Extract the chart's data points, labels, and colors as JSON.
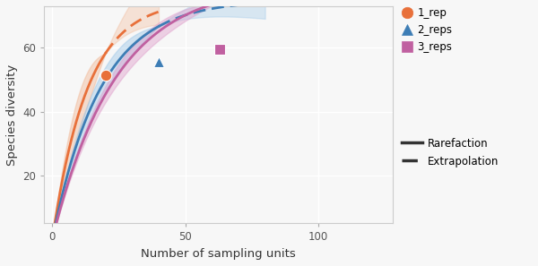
{
  "xlabel": "Number of sampling units",
  "ylabel": "Species diversity",
  "xlim": [
    -3,
    128
  ],
  "ylim": [
    5,
    73
  ],
  "yticks": [
    20,
    40,
    60
  ],
  "xticks": [
    0,
    50,
    100
  ],
  "bg_color": "#f7f7f7",
  "grid_color": "#ffffff",
  "series": [
    {
      "name": "1_rep",
      "color": "#E8703A",
      "shade_color": "#F2B896",
      "rare_end_x": 20,
      "extrap_end_x": 40,
      "sample_x": 20,
      "sample_y": 51.5,
      "marker": "o",
      "curve_a": 75,
      "curve_b": 0.075,
      "rare_ci_scale": 6.0,
      "extrap_ci_top_end": 15,
      "extrap_ci_bot_end": 4
    },
    {
      "name": "2_reps",
      "color": "#3D7DB5",
      "shade_color": "#9EC8E8",
      "rare_end_x": 40,
      "extrap_end_x": 80,
      "sample_x": 40,
      "sample_y": 55.5,
      "marker": "^",
      "curve_a": 75,
      "curve_b": 0.055,
      "rare_ci_scale": 4.0,
      "extrap_ci_top_end": 8,
      "extrap_ci_bot_end": 5
    },
    {
      "name": "3_reps",
      "color": "#C060A0",
      "shade_color": "#E0A0CC",
      "rare_end_x": 63,
      "extrap_end_x": 125,
      "sample_x": 63,
      "sample_y": 59.5,
      "marker": "s",
      "curve_a": 80,
      "curve_b": 0.042,
      "rare_ci_scale": 3.0,
      "extrap_ci_top_end": 10,
      "extrap_ci_bot_end": 3
    }
  ],
  "legend_labels": [
    "1_rep",
    "2_reps",
    "3_reps"
  ],
  "legend_colors": [
    "#E8703A",
    "#3D7DB5",
    "#C060A0"
  ],
  "legend_markers": [
    "o",
    "^",
    "s"
  ]
}
